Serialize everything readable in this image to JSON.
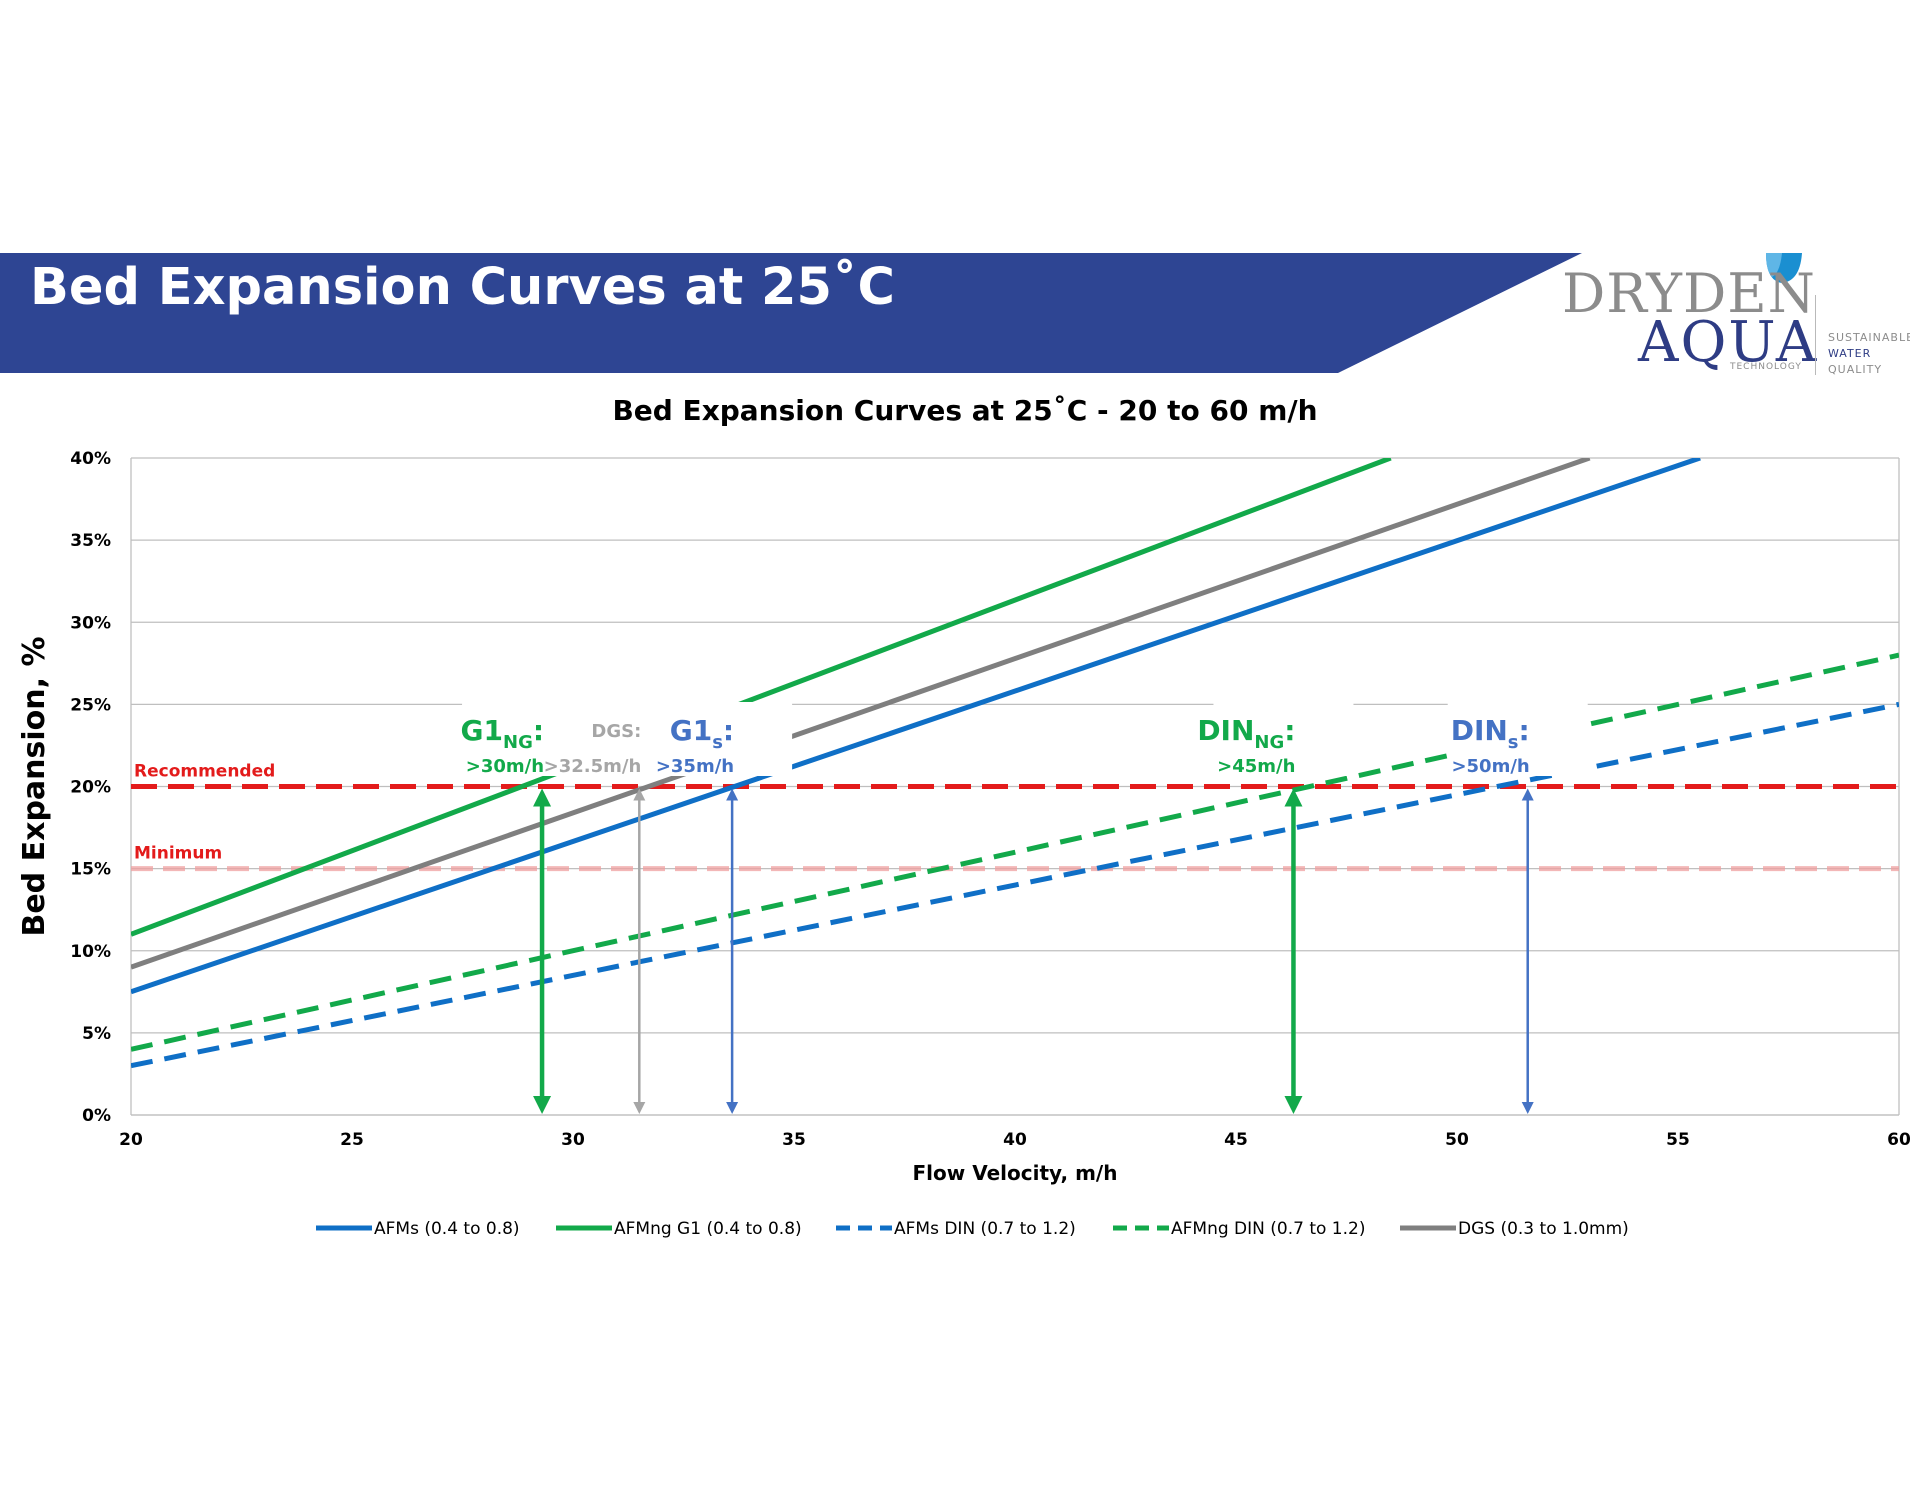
{
  "header": {
    "title": "Bed Expansion Curves at 25˚C",
    "banner_color": "#2E4593"
  },
  "logo": {
    "line1": "DRYDEN",
    "line2": "AQUA",
    "line3": "TECHNOLOGY",
    "tag1": "SUSTAINABLE",
    "tag2": "WATER",
    "tag3": "QUALITY"
  },
  "chart_data": {
    "type": "line",
    "title": "Bed Expansion Curves at 25˚C  - 20 to 60 m/h",
    "xlabel": "Flow Velocity, m/h",
    "ylabel": "Bed Expansion, %",
    "xlim": [
      20,
      60
    ],
    "ylim": [
      0,
      40
    ],
    "xticks": [
      "20",
      "25",
      "30",
      "35",
      "40",
      "45",
      "50",
      "55",
      "60"
    ],
    "yticks": [
      "0%",
      "5%",
      "10%",
      "15%",
      "20%",
      "25%",
      "30%",
      "35%",
      "40%"
    ],
    "grid": "horizontal",
    "legend_position": "bottom",
    "series": [
      {
        "name": "AFMs (0.4 to 0.8)",
        "style": "solid",
        "color": "#0F6FC6",
        "x": [
          20,
          55.5
        ],
        "y": [
          7.5,
          40
        ]
      },
      {
        "name": "AFMng G1 (0.4 to 0.8)",
        "style": "solid",
        "color": "#12A94A",
        "x": [
          20,
          48.5
        ],
        "y": [
          11,
          40
        ]
      },
      {
        "name": "AFMs DIN (0.7 to 1.2)",
        "style": "dashed",
        "color": "#0F6FC6",
        "x": [
          20,
          60
        ],
        "y": [
          3,
          25
        ]
      },
      {
        "name": "AFMng DIN (0.7 to 1.2)",
        "style": "dashed",
        "color": "#12A94A",
        "x": [
          20,
          60
        ],
        "y": [
          4,
          28
        ]
      },
      {
        "name": "DGS (0.3 to 1.0mm)",
        "style": "solid",
        "color": "#7F7F7F",
        "x": [
          20,
          53
        ],
        "y": [
          9,
          40
        ]
      }
    ],
    "reference_lines": [
      {
        "label": "Recommended",
        "y": 20,
        "color": "#E31B1B",
        "style": "dashed"
      },
      {
        "label": "Minimum",
        "y": 15,
        "color": "#F0A0A0",
        "style": "dashed"
      }
    ],
    "annotations": [
      {
        "main": "G1",
        "sub": "NG",
        "suffix": ":",
        "value": ">30m/h",
        "x": 29.3,
        "color": "#12A94A"
      },
      {
        "main": "DGS:",
        "sub": "",
        "suffix": "",
        "value": ">32.5m/h",
        "x": 31.5,
        "color": "#A6A6A6"
      },
      {
        "main": "G1",
        "sub": "s",
        "suffix": ":",
        "value": ">35m/h",
        "x": 33.6,
        "color": "#4472C4"
      },
      {
        "main": "DIN",
        "sub": "NG",
        "suffix": ":",
        "value": ">45m/h",
        "x": 46.3,
        "color": "#12A94A"
      },
      {
        "main": "DIN",
        "sub": "s",
        "suffix": ":",
        "value": ">50m/h",
        "x": 51.6,
        "color": "#4472C4"
      }
    ]
  }
}
